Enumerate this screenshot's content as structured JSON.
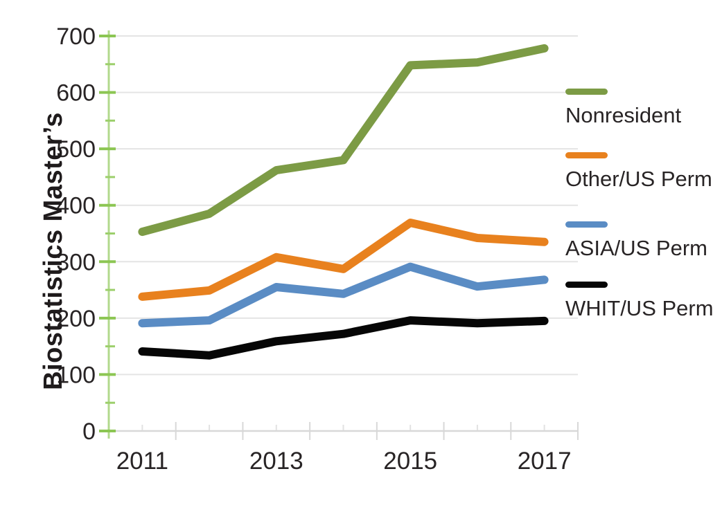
{
  "chart_data": {
    "type": "line",
    "title": "",
    "xlabel": "",
    "ylabel": "Biostatistics Master’s",
    "x": [
      2011,
      2012,
      2013,
      2014,
      2015,
      2016,
      2017
    ],
    "series": [
      {
        "name": "Nonresident",
        "color": "#7C9B45",
        "values": [
          353,
          385,
          462,
          480,
          648,
          653,
          678
        ]
      },
      {
        "name": "Other/US Perm",
        "color": "#E8811E",
        "values": [
          238,
          249,
          308,
          287,
          369,
          342,
          335
        ]
      },
      {
        "name": "ASIA/US Perm",
        "color": "#5A8CC4",
        "values": [
          191,
          196,
          255,
          243,
          291,
          256,
          268
        ]
      },
      {
        "name": "WHIT/US Perm",
        "color": "#060606",
        "values": [
          141,
          134,
          159,
          172,
          196,
          191,
          195
        ]
      }
    ],
    "ylim": [
      0,
      700
    ],
    "yticks": [
      0,
      100,
      200,
      300,
      400,
      500,
      600,
      700
    ],
    "ytick_minor_step": 50,
    "xtick_labels": [
      "2011",
      "2013",
      "2015",
      "2017"
    ],
    "grid": "horizontal",
    "legend_position": "right",
    "line_width": 12,
    "axis_colors": {
      "y_axis_line": "#B2D98C",
      "y_tick": "#8CC653",
      "y_tick_minor": "#9CCF6B",
      "x_axis": "#D8D8D8",
      "x_tick_minor": "#E2E2E2",
      "grid": "#E4E4E4"
    },
    "text_color": "#282425"
  }
}
